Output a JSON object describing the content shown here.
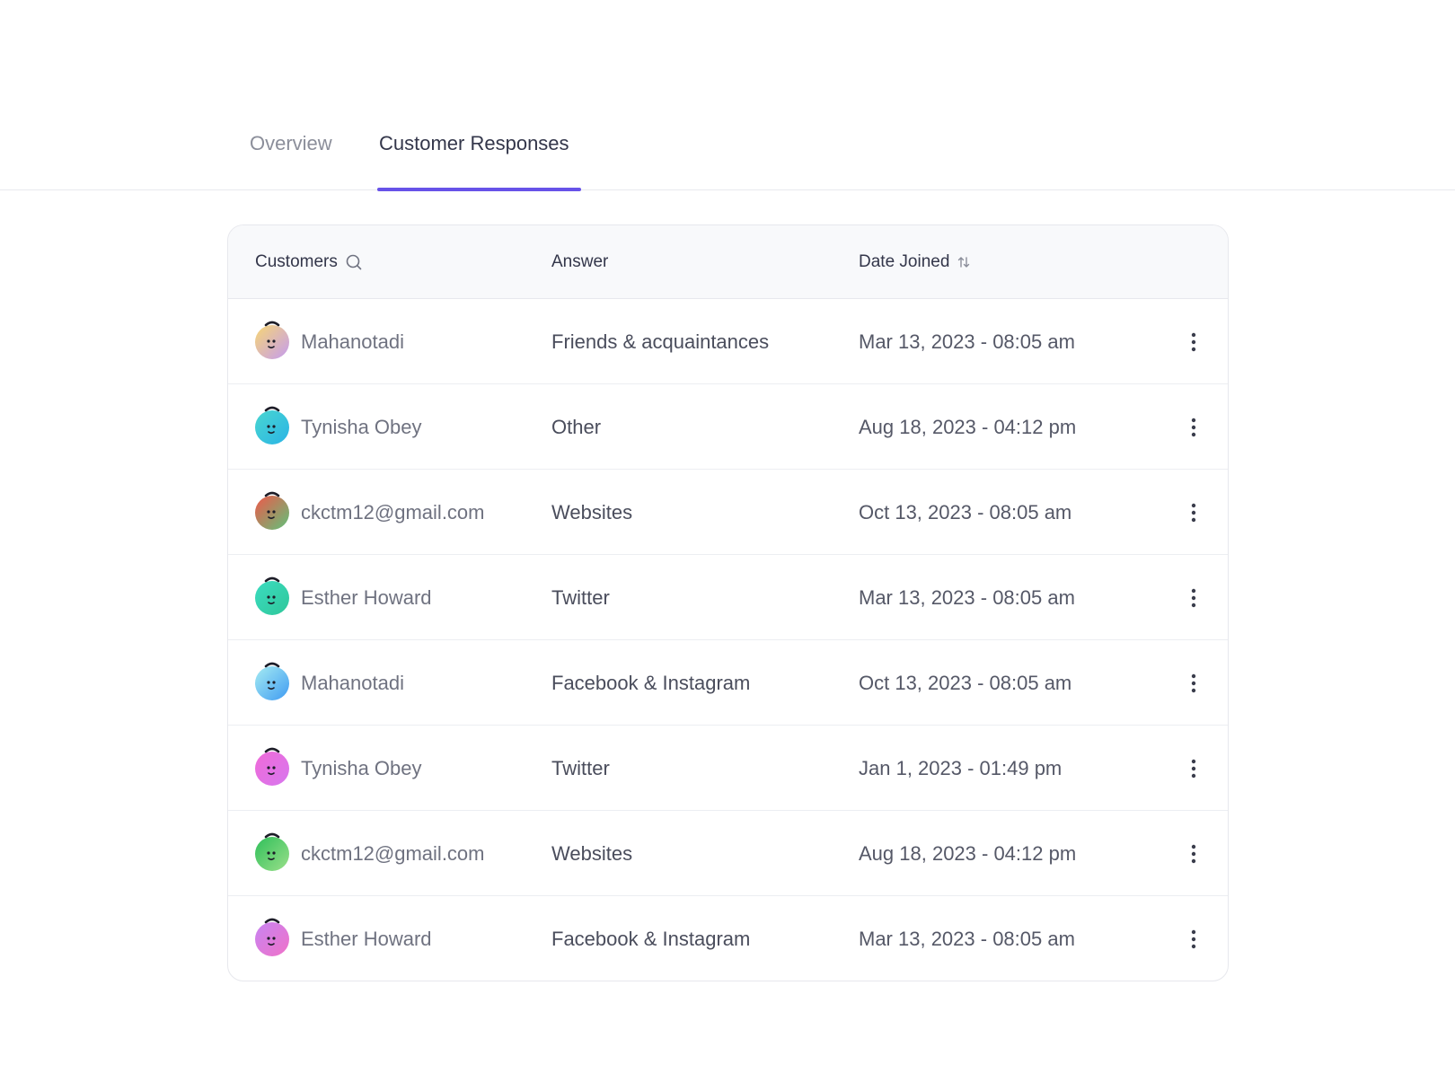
{
  "tabs": [
    {
      "label": "Overview",
      "active": false
    },
    {
      "label": "Customer Responses",
      "active": true
    }
  ],
  "table": {
    "columns": {
      "customers": "Customers",
      "answer": "Answer",
      "date_joined": "Date Joined"
    },
    "rows": [
      {
        "customer": "Mahanotadi",
        "answer": "Friends & acquaintances",
        "date": "Mar 13, 2023 - 08:05 am",
        "avatar_colors": [
          "#f7d774",
          "#c49bf0"
        ]
      },
      {
        "customer": "Tynisha Obey",
        "answer": "Other",
        "date": "Aug 18, 2023 - 04:12 pm",
        "avatar_colors": [
          "#49d6d0",
          "#2ab4e6"
        ]
      },
      {
        "customer": "ckctm12@gmail.com",
        "answer": "Websites",
        "date": "Oct 13, 2023 - 08:05 am",
        "avatar_colors": [
          "#f0584a",
          "#5fc27a"
        ]
      },
      {
        "customer": "Esther Howard",
        "answer": "Twitter",
        "date": "Mar 13, 2023 - 08:05 am",
        "avatar_colors": [
          "#3bdcc0",
          "#2fc79a"
        ]
      },
      {
        "customer": "Mahanotadi",
        "answer": "Facebook & Instagram",
        "date": "Oct 13, 2023 - 08:05 am",
        "avatar_colors": [
          "#a6ecf2",
          "#3f9bf2"
        ]
      },
      {
        "customer": "Tynisha Obey",
        "answer": "Twitter",
        "date": "Jan 1, 2023 - 01:49 pm",
        "avatar_colors": [
          "#f06ad8",
          "#d777ee"
        ]
      },
      {
        "customer": "ckctm12@gmail.com",
        "answer": "Websites",
        "date": "Aug 18, 2023 - 04:12 pm",
        "avatar_colors": [
          "#2fbf5a",
          "#9be08a"
        ]
      },
      {
        "customer": "Esther Howard",
        "answer": "Facebook & Instagram",
        "date": "Mar 13, 2023 - 08:05 am",
        "avatar_colors": [
          "#c784f2",
          "#f072c8"
        ]
      }
    ]
  },
  "icons": {
    "search": "search-icon",
    "sort": "sort-icon",
    "more": "more-vertical-icon"
  },
  "colors": {
    "accent": "#6752e8"
  }
}
